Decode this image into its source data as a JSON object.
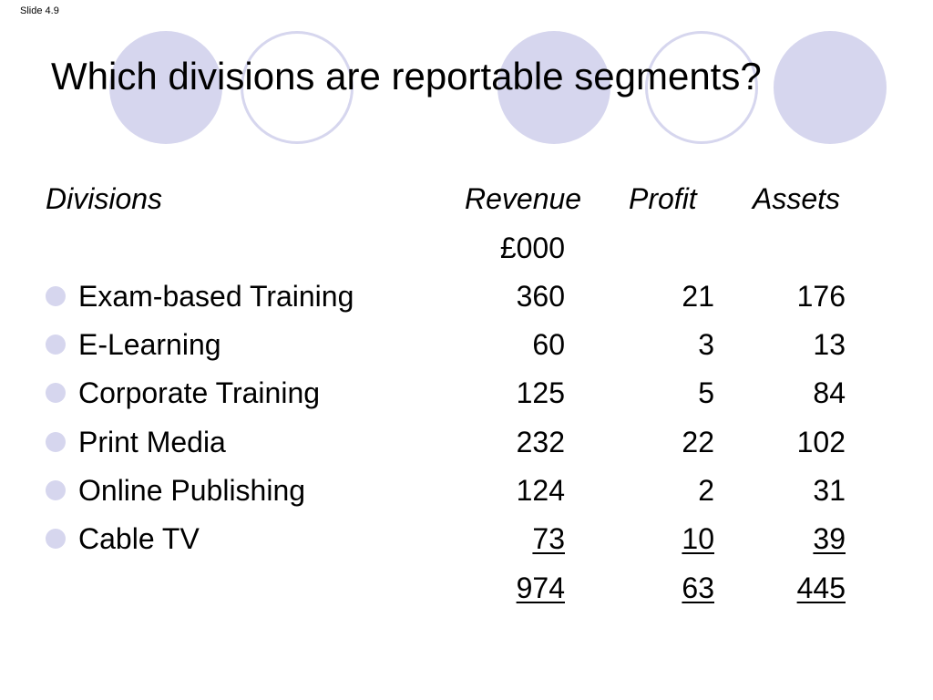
{
  "slide_label": "Slide 4.9",
  "title": "Which divisions are reportable segments?",
  "colors": {
    "accent": "#d6d6ee"
  },
  "table": {
    "headers": {
      "division": "Divisions",
      "revenue": "Revenue",
      "profit": "Profit",
      "assets": "Assets"
    },
    "revenue_unit": "£000",
    "rows": [
      {
        "division": "Exam-based Training",
        "revenue": "360",
        "profit": "21",
        "assets": "176"
      },
      {
        "division": "E-Learning",
        "revenue": "60",
        "profit": "3",
        "assets": "13"
      },
      {
        "division": "Corporate Training",
        "revenue": "125",
        "profit": "5",
        "assets": "84"
      },
      {
        "division": "Print Media",
        "revenue": "232",
        "profit": "22",
        "assets": "102"
      },
      {
        "division": "Online Publishing",
        "revenue": "124",
        "profit": "2",
        "assets": "31"
      },
      {
        "division": "Cable TV",
        "revenue": "73",
        "profit": "10",
        "assets": "39"
      }
    ],
    "totals": {
      "revenue": "974",
      "profit": "63",
      "assets": "445"
    }
  }
}
